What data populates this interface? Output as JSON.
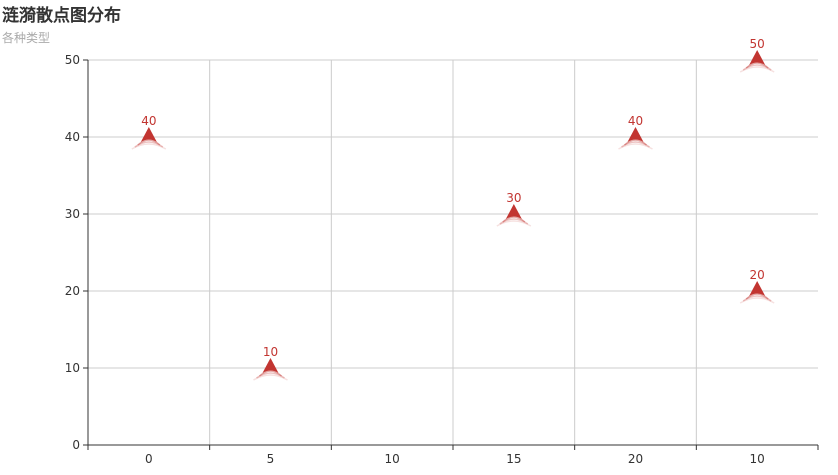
{
  "chart_data": {
    "type": "scatter",
    "title": "涟漪散点图分布",
    "subtitle": "各种类型",
    "categories": [
      "0",
      "5",
      "10",
      "15",
      "20",
      "10"
    ],
    "points": [
      {
        "category_index": 0,
        "value": 40
      },
      {
        "category_index": 1,
        "value": 10
      },
      {
        "category_index": 3,
        "value": 30
      },
      {
        "category_index": 4,
        "value": 40
      },
      {
        "category_index": 5,
        "value": 50
      },
      {
        "category_index": 5,
        "value": 20
      }
    ],
    "ylim": [
      0,
      50
    ],
    "yticks": [
      0,
      10,
      20,
      30,
      40,
      50
    ],
    "grid": true,
    "symbol": "pin-arrow-ripple",
    "color": "#c23531"
  }
}
